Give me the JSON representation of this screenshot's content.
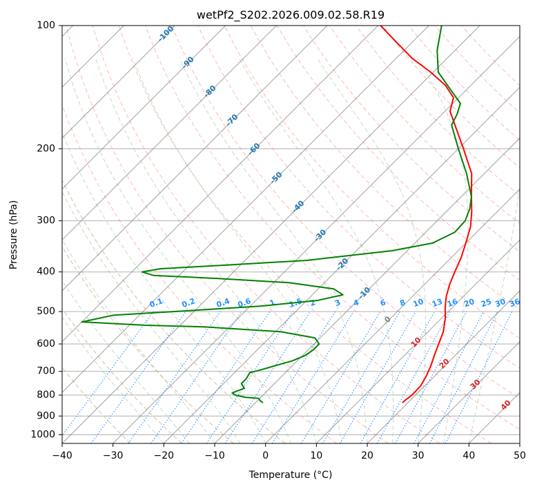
{
  "chart_data": {
    "type": "line",
    "chart_kind": "skew-T log-p diagram",
    "title": "wetPf2_S202.2026.009.02.58.R19",
    "xlabel": "Temperature (°C)",
    "ylabel": "Pressure (hPa)",
    "xlim": [
      -40,
      50
    ],
    "ylim": [
      1050,
      100
    ],
    "y_scale": "log",
    "grid": true,
    "x_ticks": [
      -40,
      -30,
      -20,
      -10,
      0,
      10,
      20,
      30,
      40,
      50
    ],
    "y_ticks": [
      100,
      200,
      300,
      400,
      500,
      600,
      700,
      800,
      900,
      1000
    ],
    "colors": {
      "temperature": "#ff0000",
      "dewpoint": "#008000",
      "isotherm": "#808080",
      "dry_adiabat": "#fa8072",
      "moist_adiabat": "#8fbc8f",
      "mixing_ratio": "#1e90ff",
      "isotherm_label": "#1f77b4",
      "dry_adiabat_label": "#d62728",
      "iso_zero_label": "#7f7f7f"
    },
    "series": [
      {
        "name": "",
        "color": "#ff0000",
        "points": [
          {
            "p": 835,
            "t": 18.9
          },
          {
            "p": 820,
            "t": 19.0
          },
          {
            "p": 800,
            "t": 19.3
          },
          {
            "p": 760,
            "t": 19.2
          },
          {
            "p": 720,
            "t": 18.4
          },
          {
            "p": 680,
            "t": 17.3
          },
          {
            "p": 640,
            "t": 15.9
          },
          {
            "p": 600,
            "t": 14.5
          },
          {
            "p": 560,
            "t": 13.0
          },
          {
            "p": 520,
            "t": 10.8
          },
          {
            "p": 490,
            "t": 8.7
          },
          {
            "p": 460,
            "t": 6.7
          },
          {
            "p": 430,
            "t": 5.0
          },
          {
            "p": 400,
            "t": 3.5
          },
          {
            "p": 370,
            "t": 2.0
          },
          {
            "p": 340,
            "t": 0.0
          },
          {
            "p": 310,
            "t": -2.3
          },
          {
            "p": 285,
            "t": -5.0
          },
          {
            "p": 262,
            "t": -8.0
          },
          {
            "p": 230,
            "t": -12.5
          },
          {
            "p": 200,
            "t": -19.0
          },
          {
            "p": 180,
            "t": -24.0
          },
          {
            "p": 162,
            "t": -29.0
          },
          {
            "p": 150,
            "t": -31.0
          },
          {
            "p": 140,
            "t": -35.0
          },
          {
            "p": 130,
            "t": -40.5
          },
          {
            "p": 120,
            "t": -47.0
          },
          {
            "p": 110,
            "t": -53.0
          },
          {
            "p": 100,
            "t": -59.5
          }
        ]
      },
      {
        "name": "",
        "color": "#008000",
        "points": [
          {
            "p": 835,
            "t": -8.5
          },
          {
            "p": 825,
            "t": -9.5
          },
          {
            "p": 815,
            "t": -10.2
          },
          {
            "p": 810,
            "t": -13.0
          },
          {
            "p": 800,
            "t": -15.5
          },
          {
            "p": 790,
            "t": -16.5
          },
          {
            "p": 770,
            "t": -15.0
          },
          {
            "p": 750,
            "t": -16.5
          },
          {
            "p": 730,
            "t": -16.5
          },
          {
            "p": 705,
            "t": -17.0
          },
          {
            "p": 695,
            "t": -15.5
          },
          {
            "p": 675,
            "t": -13.0
          },
          {
            "p": 660,
            "t": -11.0
          },
          {
            "p": 640,
            "t": -9.5
          },
          {
            "p": 620,
            "t": -9.0
          },
          {
            "p": 600,
            "t": -9.0
          },
          {
            "p": 580,
            "t": -11.0
          },
          {
            "p": 560,
            "t": -19.0
          },
          {
            "p": 545,
            "t": -35.0
          },
          {
            "p": 540,
            "t": -47.0
          },
          {
            "p": 530,
            "t": -60.0
          },
          {
            "p": 510,
            "t": -55.0
          },
          {
            "p": 500,
            "t": -44.0
          },
          {
            "p": 485,
            "t": -28.0
          },
          {
            "p": 470,
            "t": -18.0
          },
          {
            "p": 455,
            "t": -14.0
          },
          {
            "p": 440,
            "t": -17.0
          },
          {
            "p": 425,
            "t": -27.0
          },
          {
            "p": 415,
            "t": -42.0
          },
          {
            "p": 408,
            "t": -55.0
          },
          {
            "p": 400,
            "t": -58.0
          },
          {
            "p": 393,
            "t": -55.0
          },
          {
            "p": 385,
            "t": -43.0
          },
          {
            "p": 375,
            "t": -28.0
          },
          {
            "p": 355,
            "t": -13.0
          },
          {
            "p": 340,
            "t": -6.5
          },
          {
            "p": 320,
            "t": -4.3
          },
          {
            "p": 300,
            "t": -4.5
          },
          {
            "p": 280,
            "t": -6.0
          },
          {
            "p": 262,
            "t": -8.0
          },
          {
            "p": 230,
            "t": -13.5
          },
          {
            "p": 200,
            "t": -20.0
          },
          {
            "p": 175,
            "t": -26.0
          },
          {
            "p": 165,
            "t": -27.0
          },
          {
            "p": 155,
            "t": -28.5
          },
          {
            "p": 145,
            "t": -32.5
          },
          {
            "p": 130,
            "t": -39.0
          },
          {
            "p": 115,
            "t": -43.5
          },
          {
            "p": 100,
            "t": -47.5
          }
        ]
      }
    ],
    "isotherm_labels": [
      -100,
      -90,
      -80,
      -70,
      -60,
      -50,
      -40,
      -30,
      -20,
      -10
    ],
    "isotherm_zero_label": "0",
    "dry_adiabat_labels": [
      10,
      20,
      30,
      40
    ],
    "mixing_ratio_labels": [
      "0.1",
      "0.2",
      "0.4",
      "0.6",
      "1",
      "1.5",
      "2",
      "3",
      "4",
      "6",
      "8",
      "10",
      "13",
      "16",
      "20",
      "25",
      "30",
      "36"
    ],
    "mixing_ratio_values": [
      0.1,
      0.2,
      0.4,
      0.6,
      1,
      1.5,
      2,
      3,
      4,
      6,
      8,
      10,
      13,
      16,
      20,
      25,
      30,
      36
    ]
  }
}
